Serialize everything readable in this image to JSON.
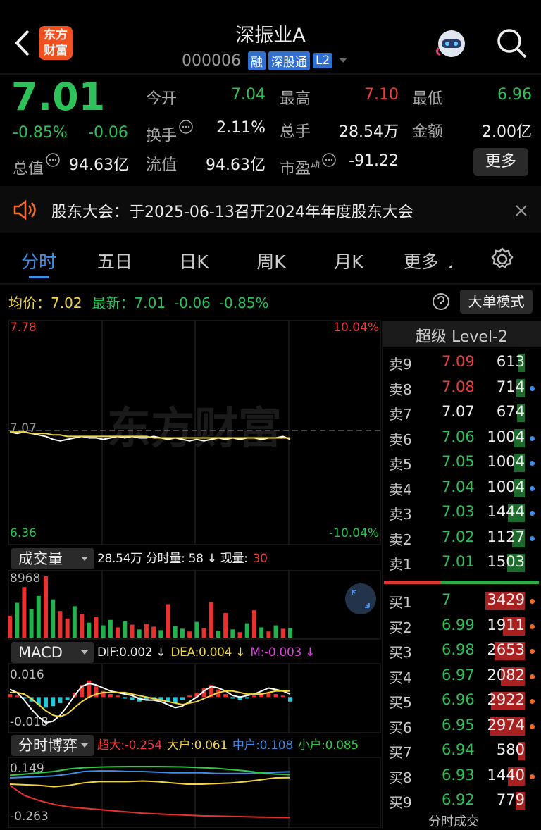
{
  "header": {
    "title": "深振业A",
    "code": "000006",
    "badges": [
      "融",
      "深股通",
      "L2"
    ],
    "logo": [
      "东方",
      "财富"
    ]
  },
  "quote": {
    "price": "7.01",
    "change_pct": "-0.85%",
    "change": "-0.06",
    "total_label": "总值",
    "total_value": "94.63亿",
    "more": "更多",
    "fields": [
      {
        "label": "今开",
        "value": "7.04",
        "color": "#2fc159"
      },
      {
        "label": "最高",
        "value": "7.10",
        "color": "#f03c3c"
      },
      {
        "label": "最低",
        "value": "6.96",
        "color": "#2fc159"
      },
      {
        "label": "换手",
        "value": "2.11%",
        "color": "#eeeeee",
        "info_icon": true
      },
      {
        "label": "总手",
        "value": "28.54万",
        "color": "#eeeeee"
      },
      {
        "label": "金额",
        "value": "2.00亿",
        "color": "#eeeeee"
      },
      {
        "label": "流值",
        "value": "94.63亿",
        "color": "#eeeeee"
      },
      {
        "label": "市盈",
        "sup": "动",
        "value": "-91.22",
        "color": "#eeeeee",
        "info_icon": true
      }
    ]
  },
  "notice": "股东大会：于2025-06-13召开2024年年度股东大会",
  "tabs": {
    "items": [
      "分时",
      "五日",
      "日K",
      "周K",
      "月K",
      "更多"
    ],
    "active": 0
  },
  "info": {
    "avg_label": "均价：",
    "avg_value": "7.02",
    "latest_label": "最新：",
    "latest_value": "7.01",
    "change": "-0.06",
    "change_pct": "-0.85%",
    "mode": "大单模式"
  },
  "chart_data": [
    {
      "type": "line",
      "watermark": "东方财富",
      "ylim": [
        6.36,
        7.78
      ],
      "yticks": [
        7.78,
        7.07,
        6.36
      ],
      "y2lim": [
        -10.04,
        10.04
      ],
      "y2ticks": [
        {
          "value": 10.04,
          "label": "10.04%"
        },
        {
          "value": -10.04,
          "label": "-10.04%"
        }
      ],
      "series": [
        {
          "color": "#ffffff",
          "values": [
            7.06,
            7.05,
            7.06,
            7.05,
            7.04,
            7.03,
            7.01,
            7.0,
            7.01,
            7.02,
            7.03,
            7.02,
            7.02,
            7.01,
            7.02,
            7.03,
            7.02,
            7.03,
            7.02,
            7.02,
            7.03,
            7.02,
            7.01,
            7.02,
            7.01,
            7.0,
            7.01,
            7.0,
            7.01,
            7.02,
            7.01,
            7.02,
            7.01,
            7.02,
            7.02,
            7.01,
            7.02,
            7.02,
            7.03,
            7.01
          ]
        },
        {
          "color": "#f2d641",
          "values": [
            7.06,
            7.06,
            7.06,
            7.05,
            7.05,
            7.05,
            7.04,
            7.04,
            7.03,
            7.03,
            7.03,
            7.03,
            7.03,
            7.03,
            7.03,
            7.03,
            7.03,
            7.03,
            7.03,
            7.03,
            7.02,
            7.02,
            7.02,
            7.02,
            7.02,
            7.02,
            7.02,
            7.02,
            7.02,
            7.02,
            7.02,
            7.02,
            7.02,
            7.02,
            7.02,
            7.02,
            7.02,
            7.02,
            7.02,
            7.02
          ]
        }
      ]
    },
    {
      "type": "bar",
      "title": "成交量",
      "legend": [
        {
          "text": "28.54万 分时量: 58 ↓ 现量:",
          "color": "#eeeeee"
        },
        {
          "text": "30",
          "color": "#f03c3c"
        }
      ],
      "ylim": [
        0,
        8968
      ],
      "yticks": [
        8968
      ],
      "values": [
        3200,
        5100,
        7400,
        4200,
        6100,
        8968,
        5600,
        3900,
        2800,
        4600,
        3500,
        2200,
        3100,
        1800,
        2600,
        1500,
        2400,
        1900,
        1200,
        2000,
        1600,
        1100,
        4900,
        1700,
        1300,
        900,
        2300,
        1400,
        5200,
        1000,
        3600,
        1200,
        800,
        2100,
        4000,
        1500,
        900,
        1800,
        1300,
        1400
      ],
      "colors": [
        "#e8312f",
        "#22b14c",
        "#e8312f",
        "#22b14c",
        "#22b14c",
        "#e8312f",
        "#22b14c",
        "#e8312f",
        "#e8312f",
        "#22b14c",
        "#e8312f",
        "#22b14c",
        "#e8312f",
        "#22b14c",
        "#22b14c",
        "#e8312f",
        "#22b14c",
        "#e8312f",
        "#22b14c",
        "#e8312f",
        "#e8312f",
        "#22b14c",
        "#e8312f",
        "#22b14c",
        "#22b14c",
        "#e8312f",
        "#22b14c",
        "#e8312f",
        "#e8312f",
        "#22b14c",
        "#e8312f",
        "#22b14c",
        "#e8312f",
        "#22b14c",
        "#e8312f",
        "#22b14c",
        "#e8312f",
        "#22b14c",
        "#e8312f",
        "#22b14c"
      ]
    },
    {
      "type": "macd",
      "title": "MACD",
      "legend": [
        {
          "text": "DIF:0.002 ↓",
          "color": "#eeeeee"
        },
        {
          "text": "DEA:0.004 ↓",
          "color": "#f2d641"
        },
        {
          "text": "M:-0.003 ↓",
          "color": "#e040e0"
        }
      ],
      "ylim": [
        -0.018,
        0.016
      ],
      "yticks": [
        0.016,
        -0.018
      ],
      "values": [
        0.002,
        0.001,
        -0.001,
        -0.003,
        -0.005,
        -0.007,
        -0.006,
        -0.004,
        -0.002,
        0.003,
        0.008,
        0.011,
        0.007,
        0.004,
        0.002,
        0.001,
        -0.001,
        -0.002,
        -0.003,
        -0.002,
        -0.001,
        -0.002,
        -0.003,
        -0.004,
        -0.002,
        0.001,
        0.003,
        0.006,
        0.008,
        0.005,
        0.002,
        -0.001,
        -0.002,
        -0.001,
        0.001,
        0.002,
        0.003,
        0.002,
        0.001,
        -0.003
      ],
      "series": [
        {
          "color": "#ffffff",
          "values": [
            0.005,
            0.003,
            -0.002,
            -0.008,
            -0.013,
            -0.017,
            -0.016,
            -0.012,
            -0.006,
            0.001,
            0.007,
            0.009,
            0.008,
            0.006,
            0.004,
            0.003,
            0.002,
            0.001,
            -0.001,
            -0.002,
            -0.002,
            -0.003,
            -0.005,
            -0.007,
            -0.006,
            -0.003,
            0,
            0.004,
            0.007,
            0.006,
            0.004,
            0.001,
            0,
            0.001,
            0.002,
            0.004,
            0.006,
            0.005,
            0.004,
            0.002
          ]
        },
        {
          "color": "#f2d641",
          "values": [
            0.003,
            0.003,
            0.002,
            -0.001,
            -0.005,
            -0.009,
            -0.012,
            -0.013,
            -0.011,
            -0.007,
            -0.003,
            0,
            0.002,
            0.003,
            0.003,
            0.003,
            0.003,
            0.002,
            0.001,
            0,
            -0.001,
            -0.002,
            -0.003,
            -0.004,
            -0.005,
            -0.004,
            -0.003,
            -0.001,
            0.001,
            0.003,
            0.004,
            0.004,
            0.003,
            0.002,
            0.002,
            0.002,
            0.003,
            0.004,
            0.004,
            0.004
          ]
        }
      ]
    },
    {
      "type": "line",
      "title": "分时博弈",
      "legend": [
        {
          "text": "超大:-0.254",
          "color": "#f03c3c"
        },
        {
          "text": "大户:0.061",
          "color": "#f2d641"
        },
        {
          "text": "中户:0.108",
          "color": "#3f8de8"
        },
        {
          "text": "小户:0.085",
          "color": "#2ecc40"
        }
      ],
      "ylim": [
        -0.263,
        0.149
      ],
      "yticks": [
        0.149,
        -0.263
      ],
      "series": [
        {
          "color": "#e8312f",
          "values": [
            0,
            -0.08,
            -0.12,
            -0.15,
            -0.17,
            -0.18,
            -0.19,
            -0.2,
            -0.21,
            -0.22,
            -0.225,
            -0.23,
            -0.235,
            -0.24,
            -0.242,
            -0.245,
            -0.248,
            -0.25,
            -0.252,
            -0.254
          ]
        },
        {
          "color": "#f2d641",
          "values": [
            0.01,
            0.005,
            0,
            -0.01,
            0,
            0.02,
            0.03,
            0.03,
            0.03,
            0.035,
            0.03,
            0.02,
            0.01,
            0.01,
            0.015,
            0.02,
            0.03,
            0.045,
            0.06,
            0.061
          ]
        },
        {
          "color": "#3f8de8",
          "values": [
            0.06,
            0.065,
            0.07,
            0.075,
            0.09,
            0.11,
            0.115,
            0.115,
            0.11,
            0.11,
            0.105,
            0.1,
            0.1,
            0.1,
            0.095,
            0.095,
            0.095,
            0.1,
            0.105,
            0.108
          ]
        },
        {
          "color": "#2ecc40",
          "values": [
            0.08,
            0.09,
            0.1,
            0.11,
            0.13,
            0.14,
            0.145,
            0.148,
            0.149,
            0.149,
            0.149,
            0.148,
            0.145,
            0.14,
            0.135,
            0.125,
            0.115,
            0.1,
            0.09,
            0.085
          ]
        }
      ]
    }
  ],
  "order_book": {
    "title": "超级 Level-2",
    "footer": "分时成交",
    "sell": [
      {
        "label": "卖9",
        "price": 7.09,
        "volume": 613,
        "dot": false
      },
      {
        "label": "卖8",
        "price": 7.08,
        "volume": 714,
        "dot": true
      },
      {
        "label": "卖7",
        "price": 7.07,
        "volume": 674,
        "dot": false
      },
      {
        "label": "卖6",
        "price": 7.06,
        "volume": 1004,
        "dot": true
      },
      {
        "label": "卖5",
        "price": 7.05,
        "volume": 1004,
        "dot": true
      },
      {
        "label": "卖4",
        "price": 7.04,
        "volume": 1004,
        "dot": true
      },
      {
        "label": "卖3",
        "price": 7.03,
        "volume": 1444,
        "dot": true
      },
      {
        "label": "卖2",
        "price": 7.02,
        "volume": 1127,
        "dot": true
      },
      {
        "label": "卖1",
        "price": 7.01,
        "volume": 1503,
        "dot": false
      }
    ],
    "buy": [
      {
        "label": "买1",
        "price": 7.0,
        "volume": 3429,
        "dot": true
      },
      {
        "label": "买2",
        "price": 6.99,
        "volume": 1911,
        "dot": true
      },
      {
        "label": "买3",
        "price": 6.98,
        "volume": 2653,
        "dot": true
      },
      {
        "label": "买4",
        "price": 6.97,
        "volume": 2082,
        "dot": true
      },
      {
        "label": "买5",
        "price": 6.96,
        "volume": 2922,
        "dot": true
      },
      {
        "label": "买6",
        "price": 6.95,
        "volume": 2974,
        "dot": true
      },
      {
        "label": "买7",
        "price": 6.94,
        "volume": 580,
        "dot": false
      },
      {
        "label": "买8",
        "price": 6.93,
        "volume": 1440,
        "dot": true
      },
      {
        "label": "买9",
        "price": 6.92,
        "volume": 779,
        "dot": false
      }
    ]
  }
}
